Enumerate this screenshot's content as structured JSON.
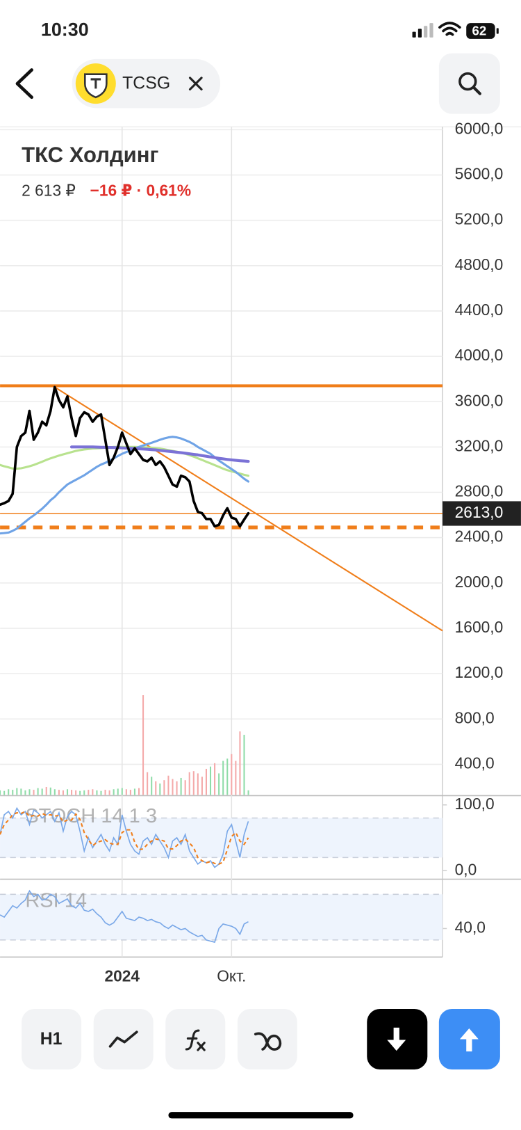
{
  "status_bar": {
    "time": "10:30",
    "battery": "62"
  },
  "header": {
    "ticker": "TCSG"
  },
  "toolbar": {
    "interval": "H1"
  },
  "chart_data": {
    "type": "line",
    "title": "ТКС Холдинг",
    "price": "2 613 ₽",
    "change": "−16 ₽ · 0,61%",
    "categories": [
      null,
      null,
      null,
      null,
      null,
      null,
      null,
      null,
      null,
      null,
      null,
      null,
      null,
      null,
      null,
      null,
      null,
      null,
      null,
      null,
      null,
      null,
      null,
      null,
      null,
      null,
      null,
      null,
      null,
      "2024",
      null,
      null,
      null,
      null,
      null,
      null,
      null,
      null,
      null,
      null,
      null,
      null,
      null,
      null,
      null,
      null,
      null,
      null,
      null,
      null,
      null,
      null,
      null,
      null,
      null,
      "Окт.",
      null,
      null,
      null,
      null
    ],
    "ylim": [
      130,
      6025
    ],
    "yticks": [
      {
        "value": 6000,
        "label": "6000,0"
      },
      {
        "value": 5600,
        "label": "5600,0"
      },
      {
        "value": 5200,
        "label": "5200,0"
      },
      {
        "value": 4800,
        "label": "4800,0"
      },
      {
        "value": 4400,
        "label": "4400,0"
      },
      {
        "value": 4000,
        "label": "4000,0"
      },
      {
        "value": 3600,
        "label": "3600,0"
      },
      {
        "value": 3200,
        "label": "3200,0"
      },
      {
        "value": 2800,
        "label": "2800,0"
      },
      {
        "value": 2400,
        "label": "2400,0"
      },
      {
        "value": 2000,
        "label": "2000,0"
      },
      {
        "value": 1600,
        "label": "1600,0"
      },
      {
        "value": 1200,
        "label": "1200,0"
      },
      {
        "value": 800,
        "label": "800,0"
      },
      {
        "value": 400,
        "label": "400,0"
      }
    ],
    "grid": true,
    "series": [
      {
        "color": "#b8e28e",
        "width": 3,
        "values": [
          3041,
          3030,
          3020,
          3010,
          3009,
          3012,
          3020,
          3030,
          3041,
          3055,
          3070,
          3086,
          3100,
          3112,
          3124,
          3135,
          3145,
          3155,
          3165,
          3172,
          3178,
          3182,
          3186,
          3188,
          3190,
          3194,
          3197,
          3200,
          3200,
          3200,
          3200,
          3200,
          3200,
          3199,
          3198,
          3196,
          3194,
          3190,
          3186,
          3180,
          3172,
          3165,
          3158,
          3150,
          3140,
          3128,
          3115,
          3100,
          3086,
          3070,
          3055,
          3040,
          3025,
          3009,
          2995,
          2985,
          2975,
          2965,
          2955,
          2946
        ]
      },
      {
        "color": "#6fa3e6",
        "width": 3,
        "values": [
          2437,
          2440,
          2445,
          2460,
          2480,
          2510,
          2540,
          2570,
          2596,
          2625,
          2655,
          2690,
          2730,
          2760,
          2800,
          2835,
          2869,
          2890,
          2910,
          2930,
          2950,
          2975,
          3000,
          3025,
          3045,
          3060,
          3080,
          3100,
          3120,
          3140,
          3155,
          3170,
          3185,
          3200,
          3213,
          3225,
          3237,
          3250,
          3264,
          3275,
          3285,
          3289,
          3285,
          3275,
          3260,
          3245,
          3225,
          3200,
          3180,
          3160,
          3140,
          3110,
          3080,
          3055,
          3030,
          3005,
          2980,
          2950,
          2920,
          2895
        ]
      },
      {
        "color": "#7b72d6",
        "width": 4,
        "values": [
          null,
          null,
          null,
          null,
          null,
          null,
          null,
          null,
          null,
          null,
          null,
          null,
          null,
          null,
          null,
          null,
          null,
          3200,
          3200,
          3200,
          3200,
          3200,
          3200,
          3199,
          3198,
          3197,
          3196,
          3195,
          3194,
          3192,
          3190,
          3188,
          3186,
          3184,
          3182,
          3180,
          3177,
          3174,
          3170,
          3166,
          3162,
          3158,
          3154,
          3150,
          3145,
          3140,
          3135,
          3130,
          3124,
          3118,
          3112,
          3106,
          3100,
          3095,
          3090,
          3086,
          3082,
          3079,
          3076,
          3073
        ]
      },
      {
        "color": "#000000",
        "width": 3.5,
        "values": [
          2691,
          2704,
          2723,
          2787,
          3200,
          3296,
          3327,
          3518,
          3264,
          3327,
          3423,
          3391,
          3518,
          3728,
          3614,
          3550,
          3646,
          3455,
          3296,
          3455,
          3506,
          3487,
          3423,
          3468,
          3487,
          3264,
          3041,
          3105,
          3200,
          3327,
          3232,
          3137,
          3188,
          3137,
          3086,
          3073,
          3105,
          3041,
          3073,
          3022,
          2946,
          2869,
          2850,
          2946,
          2933,
          2895,
          2723,
          2628,
          2615,
          2564,
          2564,
          2500,
          2513,
          2596,
          2659,
          2577,
          2564,
          2500,
          2560,
          2615
        ]
      }
    ],
    "last_price": {
      "value": 2613,
      "label": "2613,0"
    },
    "levels": [
      {
        "value": 3740,
        "color": "#f07e1a",
        "style": "solid"
      },
      {
        "value": 2490,
        "color": "#f07e1a",
        "style": "dashed"
      }
    ],
    "trendline": {
      "values": [
        3728,
        1578
      ],
      "color": "#f07e1a"
    },
    "volume": {
      "colors": {
        "up": "#8fdca8",
        "down": "#f4a9a9"
      },
      "values": [
        40,
        35,
        50,
        45,
        60,
        55,
        40,
        50,
        45,
        60,
        55,
        70,
        65,
        50,
        45,
        40,
        50,
        45,
        40,
        35,
        40,
        45,
        50,
        40,
        35,
        45,
        40,
        50,
        55,
        60,
        50,
        45,
        55,
        60,
        880,
        200,
        160,
        120,
        100,
        130,
        170,
        140,
        120,
        150,
        130,
        200,
        210,
        190,
        160,
        230,
        250,
        280,
        190,
        300,
        320,
        360,
        300,
        560,
        530,
        40
      ]
    },
    "stoch": {
      "label": "STOCH 14 1 3",
      "ylim": [
        -13,
        113
      ],
      "yticks": [
        {
          "value": 100,
          "label": "100,0"
        },
        {
          "value": 0,
          "label": "0,0"
        }
      ],
      "bands": [
        20,
        80
      ],
      "series": [
        {
          "color": "#7aa8e8",
          "dash": false,
          "values": [
            55,
            85,
            90,
            80,
            95,
            85,
            90,
            70,
            92,
            88,
            80,
            85,
            90,
            75,
            88,
            60,
            82,
            90,
            85,
            60,
            30,
            50,
            35,
            45,
            55,
            40,
            30,
            50,
            40,
            85,
            60,
            40,
            30,
            25,
            45,
            50,
            40,
            55,
            45,
            35,
            20,
            45,
            50,
            40,
            55,
            30,
            20,
            10,
            15,
            12,
            15,
            5,
            10,
            25,
            60,
            70,
            45,
            20,
            55,
            75
          ]
        },
        {
          "color": "#f07e1a",
          "dash": true,
          "values": [
            55,
            70,
            77,
            85,
            88,
            87,
            90,
            82,
            84,
            83,
            87,
            84,
            85,
            83,
            84,
            74,
            77,
            77,
            86,
            78,
            58,
            47,
            38,
            43,
            45,
            47,
            42,
            40,
            40,
            58,
            62,
            62,
            43,
            32,
            33,
            40,
            45,
            48,
            47,
            45,
            33,
            33,
            38,
            45,
            48,
            42,
            35,
            20,
            15,
            12,
            14,
            11,
            10,
            13,
            32,
            52,
            58,
            45,
            40,
            50
          ]
        }
      ]
    },
    "rsi": {
      "label": "RSI 14",
      "ylim": [
        15,
        82
      ],
      "yticks": [
        {
          "value": 40,
          "label": "40,0"
        }
      ],
      "bands": [
        30,
        70
      ],
      "series": [
        {
          "color": "#7aa8e8",
          "dash": false,
          "values": [
            52,
            50,
            55,
            60,
            58,
            62,
            65,
            73,
            68,
            70,
            65,
            66,
            70,
            68,
            62,
            64,
            66,
            60,
            58,
            62,
            56,
            55,
            57,
            53,
            50,
            45,
            43,
            45,
            50,
            55,
            49,
            48,
            47,
            50,
            49,
            47,
            48,
            46,
            45,
            42,
            40,
            43,
            41,
            39,
            40,
            37,
            35,
            33,
            34,
            30,
            29,
            28,
            40,
            44,
            43,
            42,
            40,
            35,
            44,
            46
          ]
        }
      ]
    }
  }
}
